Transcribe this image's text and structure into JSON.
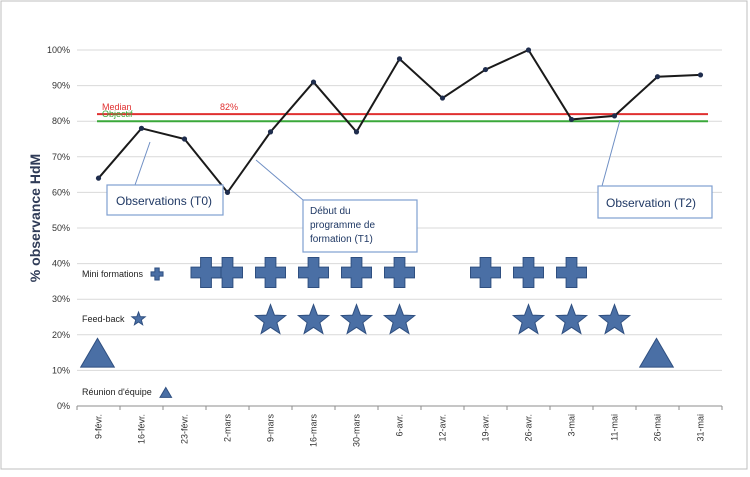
{
  "chart_data": {
    "type": "line",
    "title": "",
    "xlabel": "",
    "ylabel": "% observance HdM",
    "ylim": [
      0,
      100
    ],
    "y_ticks": [
      "0%",
      "10%",
      "20%",
      "30%",
      "40%",
      "50%",
      "60%",
      "70%",
      "80%",
      "90%",
      "100%"
    ],
    "grid": true,
    "categories": [
      "9-févr.",
      "16-févr.",
      "23-févr.",
      "2-mars",
      "9-mars",
      "16-mars",
      "30-mars",
      "6-avr.",
      "12-avr.",
      "19-avr.",
      "26-avr.",
      "3-mai",
      "11-mai",
      "26-mai",
      "31-mai"
    ],
    "series": [
      {
        "values": [
          64,
          78,
          75,
          60,
          77,
          91,
          77,
          97.5,
          86.5,
          94.5,
          100,
          80.5,
          81.5,
          92.5,
          93
        ],
        "color": "#1a1a1a"
      }
    ],
    "reference_lines": [
      {
        "label": "Median",
        "value_label": "82%",
        "y": 82,
        "color": "#e03030"
      },
      {
        "label": "Objectif",
        "y": 80,
        "color": "#3aa83a"
      }
    ],
    "markers": {
      "color": "#4a6fa5",
      "mini_formations": {
        "label": "Mini formations",
        "symbol": "cross",
        "y": 37.5,
        "categories": [
          "2-mars",
          "9-mars",
          "16-mars",
          "30-mars",
          "6-avr.",
          "19-avr.",
          "26-avr.",
          "3-mai"
        ],
        "extra_positions": [
          2.5
        ]
      },
      "feed_back": {
        "label": "Feed-back",
        "symbol": "star",
        "y": 24,
        "categories": [
          "9-mars",
          "30-mars",
          "6-avr.",
          "26-avr.",
          "3-mai",
          "11-mai"
        ],
        "extra_positions": [
          5
        ]
      },
      "reunion": {
        "label": "Réunion d'équipe",
        "symbol": "triangle",
        "y": 14.5,
        "categories": [
          "9-févr.",
          "26-mai"
        ]
      }
    },
    "annotations": [
      {
        "text": "Observations (T0)",
        "lines": [
          "Observations (T0)"
        ]
      },
      {
        "text": "Début du programme de formation (T1)",
        "lines": [
          "Début du",
          "programme de",
          "formation (T1)"
        ]
      },
      {
        "text": "Observation (T2)",
        "lines": [
          "Observation (T2)"
        ]
      }
    ]
  }
}
